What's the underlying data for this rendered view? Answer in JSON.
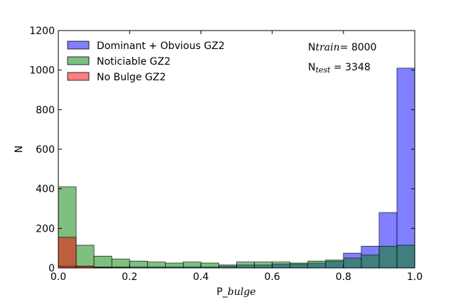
{
  "chart_data": {
    "type": "bar",
    "histogram": true,
    "bin_edges": [
      0.0,
      0.05,
      0.1,
      0.15,
      0.2,
      0.25,
      0.3,
      0.35,
      0.4,
      0.45,
      0.5,
      0.55,
      0.6,
      0.65,
      0.7,
      0.75,
      0.8,
      0.85,
      0.9,
      0.95,
      1.0
    ],
    "xlim": [
      0.0,
      1.0
    ],
    "ylim": [
      0,
      1200
    ],
    "xticks": [
      "0.0",
      "0.2",
      "0.4",
      "0.6",
      "0.8",
      "1.0"
    ],
    "yticks": [
      "0",
      "200",
      "400",
      "600",
      "800",
      "1000",
      "1200"
    ],
    "xlabel_prefix": "P_",
    "xlabel_italic": "bulge",
    "ylabel": "N",
    "legend_position": "top-left",
    "grid": false,
    "series": [
      {
        "name": "Dominant + Obvious GZ2",
        "color": "#0000ff",
        "opacity": 0.5,
        "values": [
          10,
          5,
          5,
          5,
          5,
          5,
          5,
          5,
          5,
          10,
          15,
          15,
          20,
          20,
          25,
          35,
          75,
          110,
          280,
          1010
        ]
      },
      {
        "name": "Noticiable GZ2",
        "color": "#008000",
        "opacity": 0.5,
        "values": [
          410,
          115,
          60,
          45,
          35,
          30,
          25,
          30,
          25,
          15,
          30,
          30,
          30,
          25,
          35,
          40,
          50,
          65,
          110,
          115
        ]
      },
      {
        "name": "No Bulge GZ2",
        "color": "#ff0000",
        "opacity": 0.5,
        "values": [
          155,
          10,
          3,
          2,
          1,
          1,
          0,
          0,
          0,
          0,
          0,
          0,
          0,
          0,
          0,
          0,
          0,
          0,
          0,
          0
        ]
      }
    ],
    "annotations": [
      {
        "prefix": "N",
        "italic": "train",
        "suffix": "= 8000"
      },
      {
        "prefix": "N",
        "italic": "test",
        "suffix": " = 3348"
      }
    ]
  }
}
